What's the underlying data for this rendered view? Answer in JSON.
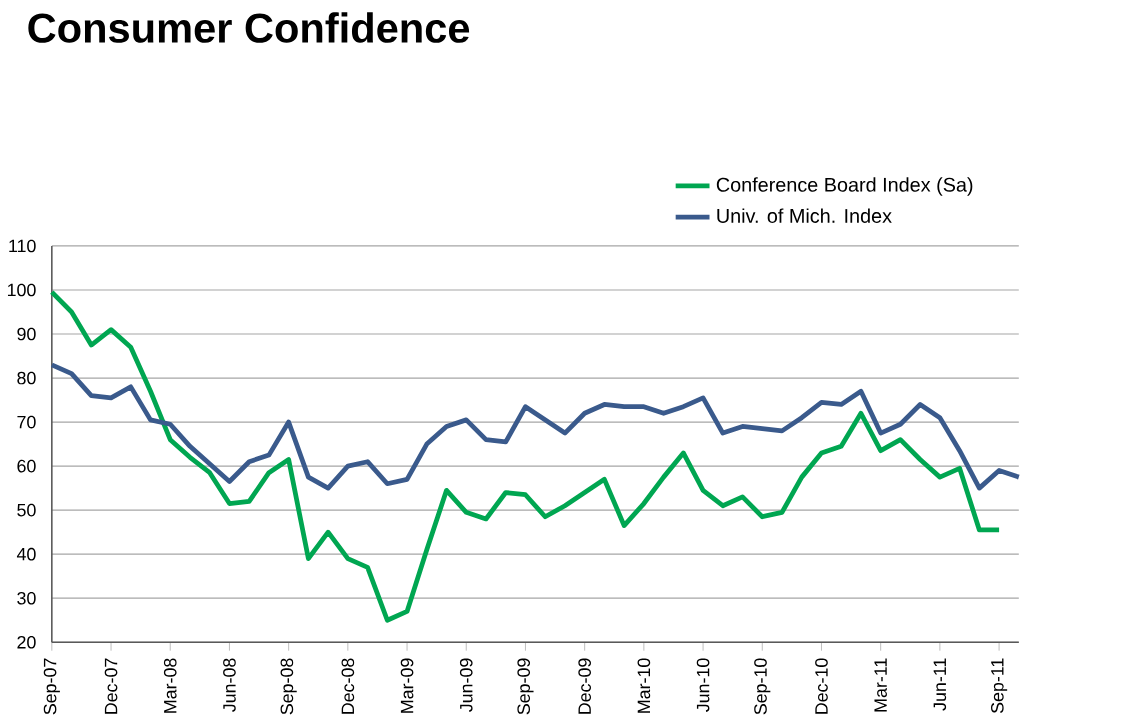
{
  "chart_data": {
    "type": "line",
    "title": "Consumer Confidence",
    "categories": [
      "Sep-07",
      null,
      null,
      "Dec-07",
      null,
      null,
      "Mar-08",
      null,
      null,
      "Jun-08",
      null,
      null,
      "Sep-08",
      null,
      null,
      "Dec-08",
      null,
      null,
      "Mar-09",
      null,
      null,
      "Jun-09",
      null,
      null,
      "Sep-09",
      null,
      null,
      "Dec-09",
      null,
      null,
      "Mar-10",
      null,
      null,
      "Jun-10",
      null,
      null,
      "Sep-10",
      null,
      null,
      "Dec-10",
      null,
      null,
      "Mar-11",
      null,
      null,
      "Jun-11",
      null,
      null,
      "Sep-11",
      null
    ],
    "series": [
      {
        "name": "Conference Board Index (Sa)",
        "color": "#00a651",
        "values": [
          99.5,
          95,
          87.5,
          91,
          87,
          77,
          66,
          62,
          58.5,
          51.5,
          52,
          58.5,
          61.5,
          39,
          45,
          39,
          37,
          25,
          27,
          41,
          54.5,
          49.5,
          48,
          54,
          53.5,
          48.5,
          51,
          54,
          57,
          46.5,
          51.5,
          57.5,
          63,
          54.5,
          51,
          53,
          48.5,
          49.5,
          57.5,
          63,
          64.5,
          72,
          63.5,
          66,
          61.5,
          57.5,
          59.5,
          45.5,
          45.5,
          null
        ]
      },
      {
        "name": "Univ. of Mich. Index",
        "color": "#3a5a8c",
        "values": [
          83,
          81,
          76,
          75.5,
          78,
          70.5,
          69.5,
          64.5,
          60.5,
          56.5,
          61,
          62.5,
          70,
          57.5,
          55,
          60,
          61,
          56,
          57,
          65,
          69,
          70.5,
          66,
          65.5,
          73.5,
          70.5,
          67.5,
          72,
          74,
          73.5,
          73.5,
          72,
          73.5,
          75.5,
          67.5,
          69,
          68.5,
          68,
          71,
          74.5,
          74,
          77,
          67.5,
          69.5,
          74,
          71,
          63.5,
          55,
          59,
          57.5
        ]
      }
    ],
    "ylim": [
      20,
      110
    ],
    "yticks": [
      20,
      30,
      40,
      50,
      60,
      70,
      80,
      90,
      100,
      110
    ],
    "grid": "y",
    "legend": "top right"
  }
}
